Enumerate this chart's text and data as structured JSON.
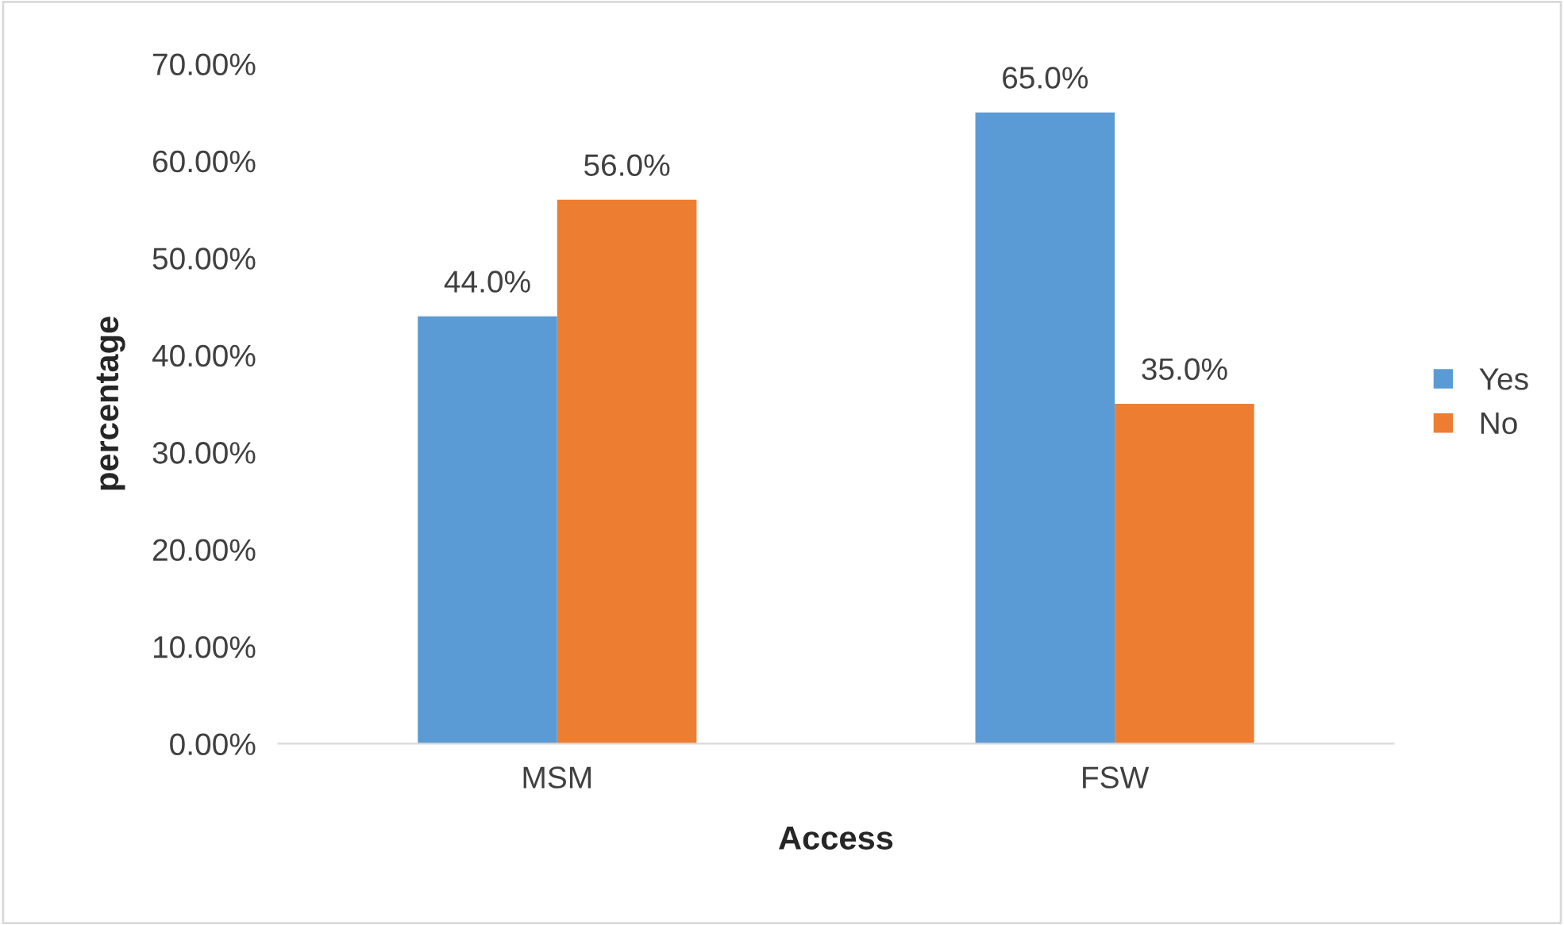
{
  "chart_data": {
    "type": "bar",
    "xlabel": "Access",
    "ylabel": "percentage",
    "categories": [
      "MSM",
      "FSW"
    ],
    "series": [
      {
        "name": "Yes",
        "color": "#5b9bd5",
        "values": [
          44.0,
          65.0
        ],
        "value_labels": [
          "44.0%",
          "65.0%"
        ]
      },
      {
        "name": "No",
        "color": "#ed7d31",
        "values": [
          56.0,
          35.0
        ],
        "value_labels": [
          "56.0%",
          "35.0%"
        ]
      }
    ],
    "ylim": [
      0,
      70
    ],
    "yticks": [
      {
        "value": 0,
        "label": "0.00%"
      },
      {
        "value": 10,
        "label": "10.00%"
      },
      {
        "value": 20,
        "label": "20.00%"
      },
      {
        "value": 30,
        "label": "30.00%"
      },
      {
        "value": 40,
        "label": "40.00%"
      },
      {
        "value": 50,
        "label": "50.00%"
      },
      {
        "value": 60,
        "label": "60.00%"
      },
      {
        "value": 70,
        "label": "70.00%"
      }
    ],
    "grid": false,
    "legend": "right"
  }
}
